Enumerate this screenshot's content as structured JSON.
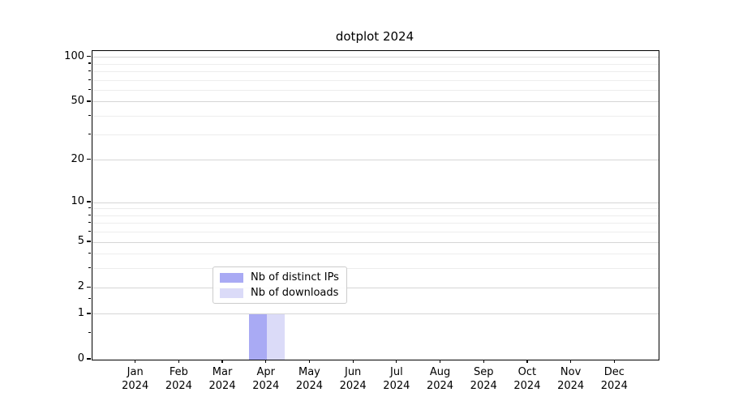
{
  "figure": {
    "title": "dotplot 2024"
  },
  "chart_data": {
    "type": "bar",
    "title": "dotplot 2024",
    "categories": [
      "Jan",
      "Feb",
      "Mar",
      "Apr",
      "May",
      "Jun",
      "Jul",
      "Aug",
      "Sep",
      "Oct",
      "Nov",
      "Dec"
    ],
    "category_year": "2024",
    "series": [
      {
        "name": "Nb of distinct IPs",
        "color": "#a9aaf4",
        "values": [
          0,
          0,
          0,
          1,
          0,
          0,
          0,
          0,
          0,
          0,
          0,
          0
        ]
      },
      {
        "name": "Nb of downloads",
        "color": "#dbdbf8",
        "values": [
          0,
          0,
          0,
          1,
          0,
          0,
          0,
          0,
          0,
          0,
          0,
          0
        ]
      }
    ],
    "xlabel": "",
    "ylabel": "",
    "yscale": "log1p",
    "ylim": [
      0,
      110
    ],
    "y_major_ticks": [
      0,
      1,
      2,
      5,
      10,
      20,
      50,
      100
    ],
    "y_minor_ticks": [
      0.5,
      1.5,
      3,
      4,
      6,
      7,
      8,
      9,
      30,
      40,
      60,
      70,
      80,
      90
    ],
    "y_minor_gridlines": [
      3,
      4,
      6,
      7,
      8,
      9,
      30,
      40,
      60,
      70,
      80,
      90
    ],
    "grid": "horizontal",
    "legend": {
      "position": "lower center",
      "items": [
        "Nb of distinct IPs",
        "Nb of downloads"
      ]
    }
  },
  "colors": {
    "background": "#ffffff",
    "axis": "#000000",
    "major_grid": "#d6d6d6",
    "minor_grid": "#ededed",
    "legend_border": "#cccccc"
  }
}
